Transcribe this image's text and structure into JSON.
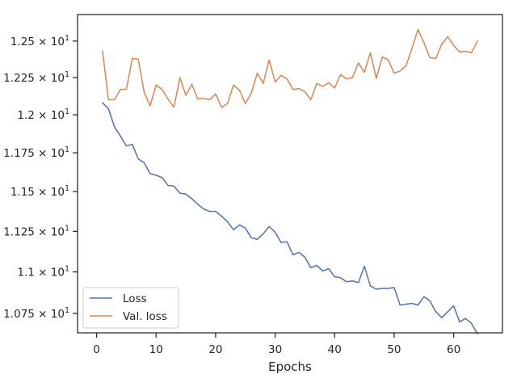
{
  "chart_data": {
    "type": "line",
    "title": "",
    "xlabel": "Epochs",
    "ylabel": "",
    "xlim": [
      -3.2,
      68.2
    ],
    "ylim": [
      10.635,
      12.685
    ],
    "yscale": "log",
    "grid": false,
    "legend_position": "lower-left",
    "x_ticks": [
      {
        "value": 0,
        "label": "0"
      },
      {
        "value": 10,
        "label": "10"
      },
      {
        "value": 20,
        "label": "20"
      },
      {
        "value": 30,
        "label": "30"
      },
      {
        "value": 40,
        "label": "40"
      },
      {
        "value": 50,
        "label": "50"
      },
      {
        "value": 60,
        "label": "60"
      }
    ],
    "y_ticks": [
      {
        "value": 10.75,
        "base": "1.075",
        "exp": "1"
      },
      {
        "value": 11.0,
        "base": "1.1",
        "exp": "1"
      },
      {
        "value": 11.25,
        "base": "1.125",
        "exp": "1"
      },
      {
        "value": 11.5,
        "base": "1.15",
        "exp": "1"
      },
      {
        "value": 11.75,
        "base": "1.175",
        "exp": "1"
      },
      {
        "value": 12.0,
        "base": "1.2",
        "exp": "1"
      },
      {
        "value": 12.25,
        "base": "1.225",
        "exp": "1"
      },
      {
        "value": 12.5,
        "base": "1.25",
        "exp": "1"
      }
    ],
    "x": [
      1,
      2,
      3,
      4,
      5,
      6,
      7,
      8,
      9,
      10,
      11,
      12,
      13,
      14,
      15,
      16,
      17,
      18,
      19,
      20,
      21,
      22,
      23,
      24,
      25,
      26,
      27,
      28,
      29,
      30,
      31,
      32,
      33,
      34,
      35,
      36,
      37,
      38,
      39,
      40,
      41,
      42,
      43,
      44,
      45,
      46,
      47,
      48,
      49,
      50,
      51,
      52,
      53,
      54,
      55,
      56,
      57,
      58,
      59,
      60,
      61,
      62,
      63,
      64
    ],
    "series": [
      {
        "name": "Loss",
        "color": "#4c72b0",
        "values": [
          12.08,
          12.04,
          11.92,
          11.86,
          11.795,
          11.805,
          11.71,
          11.685,
          11.615,
          11.605,
          11.59,
          11.54,
          11.535,
          11.49,
          11.485,
          11.455,
          11.42,
          11.39,
          11.375,
          11.375,
          11.345,
          11.31,
          11.26,
          11.29,
          11.27,
          11.21,
          11.2,
          11.235,
          11.28,
          11.245,
          11.18,
          11.185,
          11.105,
          11.12,
          11.09,
          11.025,
          11.04,
          11.005,
          11.02,
          10.97,
          10.965,
          10.94,
          10.945,
          10.935,
          11.035,
          10.915,
          10.895,
          10.9,
          10.9,
          10.905,
          10.8,
          10.805,
          10.81,
          10.8,
          10.85,
          10.825,
          10.76,
          10.725,
          10.76,
          10.795,
          10.7,
          10.72,
          10.69,
          10.63
        ]
      },
      {
        "name": "Val. loss",
        "color": "#dd8452",
        "values": [
          12.43,
          12.1,
          12.1,
          12.17,
          12.17,
          12.38,
          12.375,
          12.15,
          12.06,
          12.2,
          12.17,
          12.105,
          12.05,
          12.25,
          12.13,
          12.205,
          12.105,
          12.11,
          12.1,
          12.14,
          12.05,
          12.075,
          12.2,
          12.165,
          12.075,
          12.145,
          12.28,
          12.21,
          12.37,
          12.22,
          12.265,
          12.24,
          12.17,
          12.175,
          12.155,
          12.1,
          12.21,
          12.19,
          12.215,
          12.18,
          12.27,
          12.24,
          12.25,
          12.35,
          12.285,
          12.42,
          12.245,
          12.39,
          12.37,
          12.28,
          12.295,
          12.33,
          12.45,
          12.58,
          12.49,
          12.385,
          12.38,
          12.48,
          12.53,
          12.47,
          12.425,
          12.43,
          12.42,
          12.5
        ]
      }
    ]
  }
}
